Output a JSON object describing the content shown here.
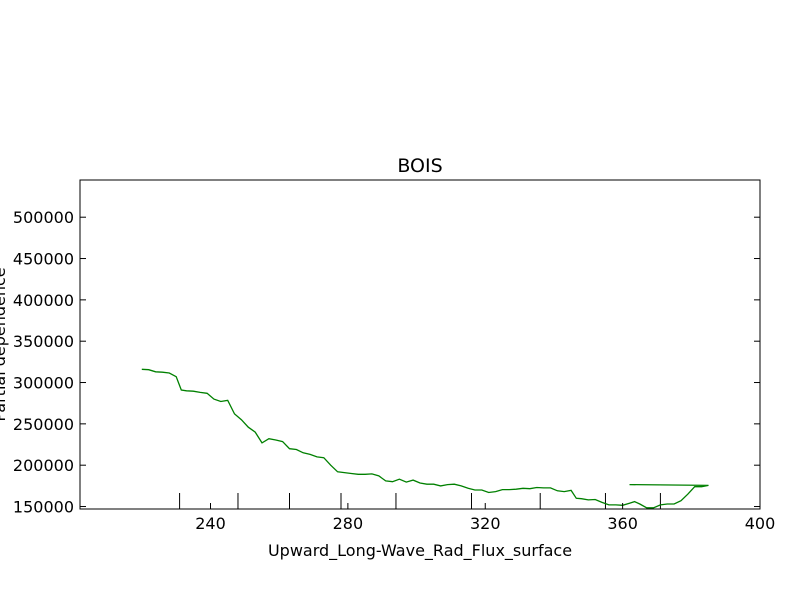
{
  "chart_data": {
    "type": "line",
    "title": "BOIS",
    "xlabel": "Upward_Long-Wave_Rad_Flux_surface",
    "ylabel": "Partial dependence",
    "xlim": [
      202,
      400
    ],
    "ylim": [
      147000,
      545000
    ],
    "xticks": [
      240,
      280,
      320,
      360,
      400
    ],
    "yticks": [
      150000,
      200000,
      250000,
      300000,
      350000,
      400000,
      450000,
      500000
    ],
    "rug": [
      231,
      248,
      263,
      278,
      294,
      316,
      336,
      355,
      371
    ],
    "series": [
      {
        "color": "#008000",
        "points": [
          [
            220,
            316000
          ],
          [
            222,
            315500
          ],
          [
            224,
            313000
          ],
          [
            226,
            312500
          ],
          [
            228,
            311500
          ],
          [
            230,
            307000
          ],
          [
            231.5,
            291000
          ],
          [
            233,
            290000
          ],
          [
            235,
            289500
          ],
          [
            237,
            288000
          ],
          [
            239,
            287000
          ],
          [
            241,
            280000
          ],
          [
            243,
            277000
          ],
          [
            245,
            278500
          ],
          [
            247,
            262000
          ],
          [
            249,
            255000
          ],
          [
            251,
            246000
          ],
          [
            253,
            240000
          ],
          [
            255,
            227000
          ],
          [
            257,
            232000
          ],
          [
            259,
            230500
          ],
          [
            261,
            228500
          ],
          [
            263,
            220000
          ],
          [
            265,
            219000
          ],
          [
            267,
            215000
          ],
          [
            269,
            213000
          ],
          [
            271,
            210000
          ],
          [
            273,
            209000
          ],
          [
            275,
            200000
          ],
          [
            277,
            192000
          ],
          [
            279,
            191000
          ],
          [
            281,
            190000
          ],
          [
            283,
            189000
          ],
          [
            285,
            189000
          ],
          [
            287,
            189500
          ],
          [
            289,
            187000
          ],
          [
            291,
            181000
          ],
          [
            293,
            180000
          ],
          [
            295,
            183000
          ],
          [
            297,
            179500
          ],
          [
            299,
            182000
          ],
          [
            301,
            178500
          ],
          [
            303,
            177000
          ],
          [
            305,
            177000
          ],
          [
            307,
            175000
          ],
          [
            309,
            176500
          ],
          [
            311,
            177000
          ],
          [
            313,
            175000
          ],
          [
            315,
            172000
          ],
          [
            317,
            170000
          ],
          [
            319,
            170000
          ],
          [
            321,
            167000
          ],
          [
            323,
            168000
          ],
          [
            325,
            170500
          ],
          [
            327,
            170500
          ],
          [
            329,
            171000
          ],
          [
            331,
            172000
          ],
          [
            333,
            171500
          ],
          [
            335,
            173000
          ],
          [
            337,
            172500
          ],
          [
            339,
            172500
          ],
          [
            341,
            169000
          ],
          [
            343,
            168000
          ],
          [
            345,
            169500
          ],
          [
            346.5,
            160000
          ],
          [
            348,
            159500
          ],
          [
            350,
            158000
          ],
          [
            352,
            158500
          ],
          [
            354,
            155000
          ],
          [
            356,
            152000
          ],
          [
            358,
            152000
          ],
          [
            360,
            151500
          ],
          [
            362,
            154000
          ],
          [
            363.5,
            156000
          ],
          [
            365,
            153000
          ],
          [
            367,
            148500
          ],
          [
            369,
            148500
          ],
          [
            371,
            152000
          ],
          [
            373,
            153000
          ],
          [
            375,
            153000
          ],
          [
            377,
            157000
          ],
          [
            379,
            165000
          ],
          [
            381,
            174000
          ],
          [
            383,
            174000
          ],
          [
            385,
            175500
          ],
          [
            362,
            176500
          ]
        ]
      }
    ]
  }
}
